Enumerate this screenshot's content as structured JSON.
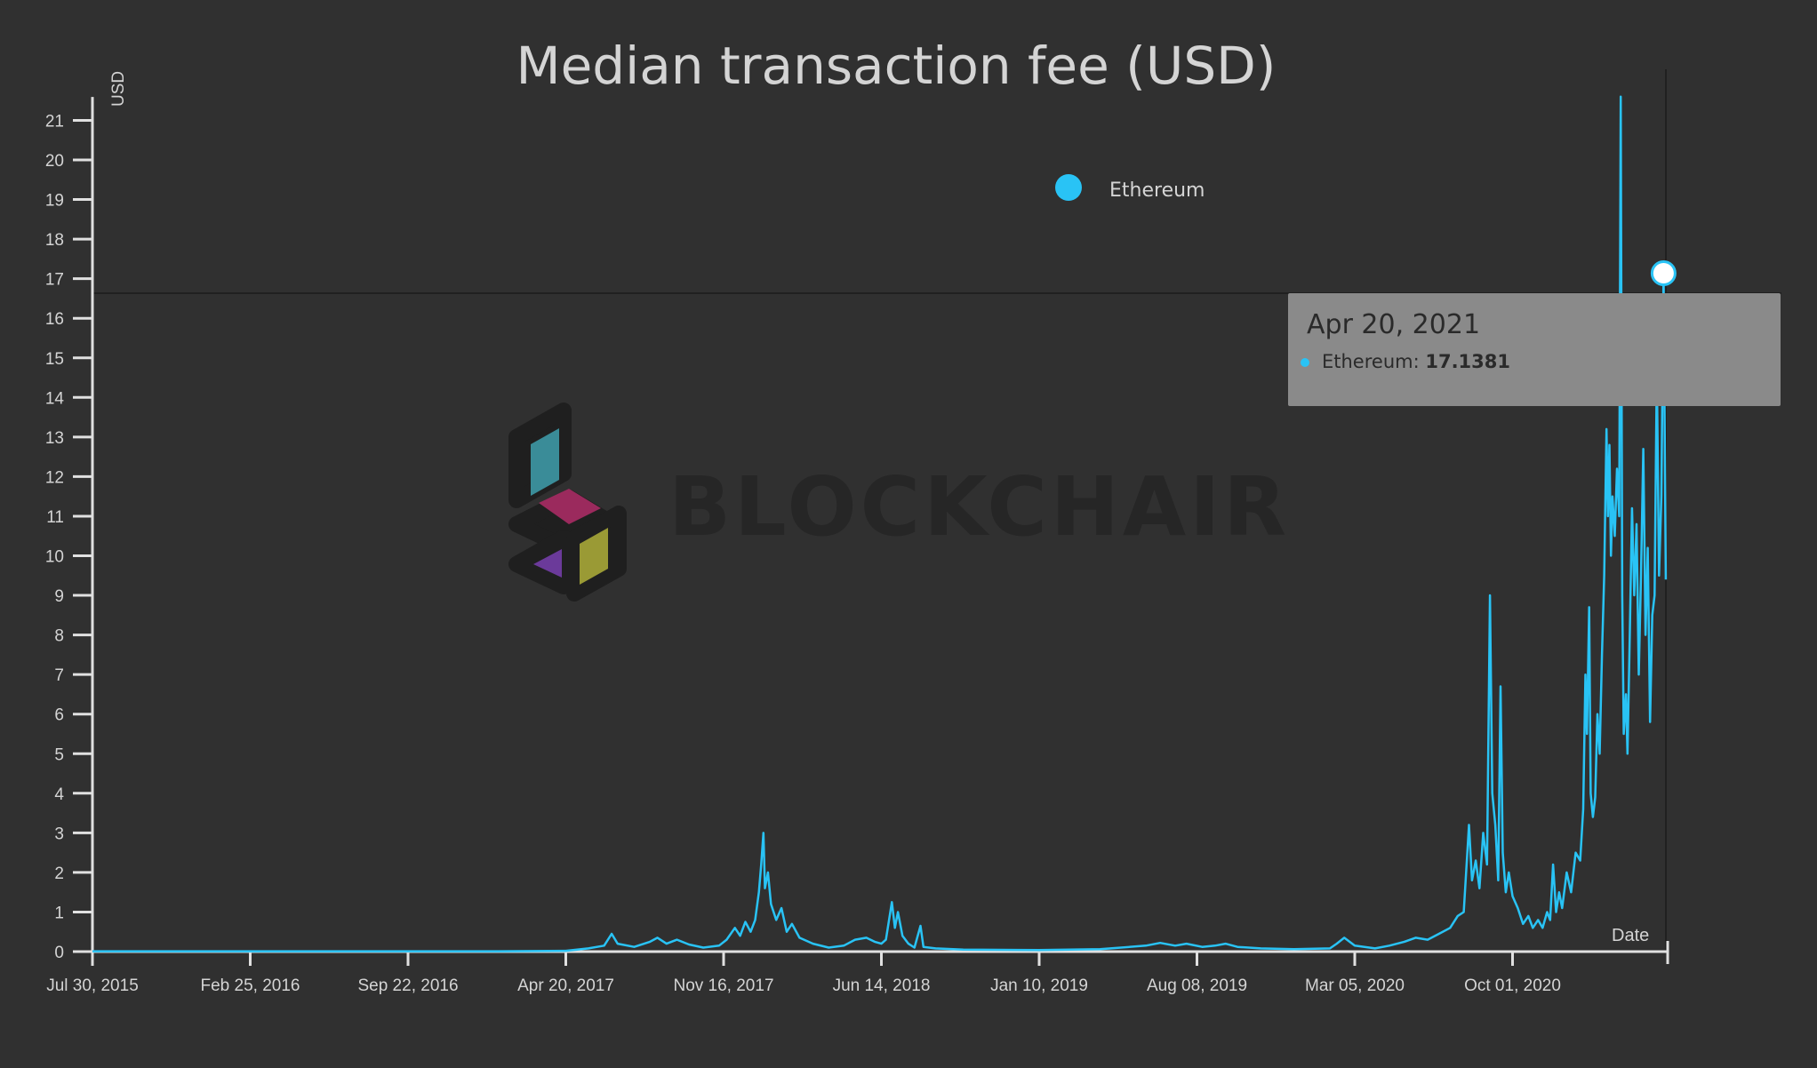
{
  "colors": {
    "background": "#303030",
    "series": "#29c3f5",
    "axis": "#e0e0e0",
    "text": "#d4d4d4",
    "tooltip_bg": "#8a8a8a",
    "watermark": "#262626"
  },
  "watermark": {
    "text": "BLOCKCHAIR"
  },
  "tooltip": {
    "date": "Apr 20, 2021",
    "series": "Ethereum",
    "separator": ":",
    "value": "17.1381"
  },
  "chart_data": {
    "type": "line",
    "title": "Median transaction fee (USD)",
    "xlabel": "Date",
    "ylabel": "USD",
    "legend": {
      "position": "top-center",
      "entries": [
        "Ethereum"
      ]
    },
    "grid": false,
    "xlim": [
      "2015-07-30",
      "2021-05-10"
    ],
    "ylim": [
      0,
      21.5
    ],
    "yticks": [
      0,
      1,
      2,
      3,
      4,
      5,
      6,
      7,
      8,
      9,
      10,
      11,
      12,
      13,
      14,
      15,
      16,
      17,
      18,
      19,
      20,
      21
    ],
    "xticks": [
      "Jul 30, 2015",
      "Feb 25, 2016",
      "Sep 22, 2016",
      "Apr 20, 2017",
      "Nov 16, 2017",
      "Jun 14, 2018",
      "Jan 10, 2019",
      "Aug 08, 2019",
      "Mar 05, 2020",
      "Oct 01, 2020"
    ],
    "highlight": {
      "x": "2021-04-20",
      "y": 17.1381
    },
    "series": [
      {
        "name": "Ethereum",
        "points": [
          [
            "2015-07-30",
            0.01
          ],
          [
            "2016-02-25",
            0.01
          ],
          [
            "2016-09-22",
            0.01
          ],
          [
            "2017-01-20",
            0.01
          ],
          [
            "2017-04-20",
            0.02
          ],
          [
            "2017-05-20",
            0.08
          ],
          [
            "2017-06-10",
            0.15
          ],
          [
            "2017-06-20",
            0.45
          ],
          [
            "2017-06-28",
            0.2
          ],
          [
            "2017-07-20",
            0.12
          ],
          [
            "2017-08-10",
            0.25
          ],
          [
            "2017-08-20",
            0.35
          ],
          [
            "2017-09-01",
            0.2
          ],
          [
            "2017-09-15",
            0.3
          ],
          [
            "2017-10-01",
            0.18
          ],
          [
            "2017-10-20",
            0.1
          ],
          [
            "2017-11-10",
            0.15
          ],
          [
            "2017-11-20",
            0.3
          ],
          [
            "2017-12-01",
            0.6
          ],
          [
            "2017-12-08",
            0.4
          ],
          [
            "2017-12-15",
            0.75
          ],
          [
            "2017-12-22",
            0.5
          ],
          [
            "2017-12-28",
            0.8
          ],
          [
            "2018-01-02",
            1.5
          ],
          [
            "2018-01-05",
            2.2
          ],
          [
            "2018-01-08",
            3.0
          ],
          [
            "2018-01-10",
            1.6
          ],
          [
            "2018-01-14",
            2.0
          ],
          [
            "2018-01-18",
            1.2
          ],
          [
            "2018-01-25",
            0.8
          ],
          [
            "2018-02-01",
            1.1
          ],
          [
            "2018-02-08",
            0.5
          ],
          [
            "2018-02-15",
            0.7
          ],
          [
            "2018-02-25",
            0.35
          ],
          [
            "2018-03-15",
            0.2
          ],
          [
            "2018-04-05",
            0.1
          ],
          [
            "2018-04-25",
            0.15
          ],
          [
            "2018-05-10",
            0.3
          ],
          [
            "2018-05-25",
            0.35
          ],
          [
            "2018-06-05",
            0.25
          ],
          [
            "2018-06-14",
            0.2
          ],
          [
            "2018-06-20",
            0.3
          ],
          [
            "2018-06-28",
            1.25
          ],
          [
            "2018-07-02",
            0.6
          ],
          [
            "2018-07-06",
            1.0
          ],
          [
            "2018-07-12",
            0.4
          ],
          [
            "2018-07-20",
            0.2
          ],
          [
            "2018-07-28",
            0.1
          ],
          [
            "2018-08-05",
            0.65
          ],
          [
            "2018-08-09",
            0.12
          ],
          [
            "2018-08-25",
            0.08
          ],
          [
            "2018-10-01",
            0.05
          ],
          [
            "2019-01-10",
            0.04
          ],
          [
            "2019-04-01",
            0.06
          ],
          [
            "2019-06-01",
            0.15
          ],
          [
            "2019-06-20",
            0.22
          ],
          [
            "2019-07-10",
            0.15
          ],
          [
            "2019-07-25",
            0.2
          ],
          [
            "2019-08-15",
            0.12
          ],
          [
            "2019-09-01",
            0.15
          ],
          [
            "2019-09-15",
            0.2
          ],
          [
            "2019-10-01",
            0.12
          ],
          [
            "2019-11-01",
            0.08
          ],
          [
            "2019-12-15",
            0.06
          ],
          [
            "2020-02-01",
            0.08
          ],
          [
            "2020-02-10",
            0.2
          ],
          [
            "2020-02-20",
            0.35
          ],
          [
            "2020-03-05",
            0.15
          ],
          [
            "2020-04-01",
            0.08
          ],
          [
            "2020-04-20",
            0.15
          ],
          [
            "2020-05-10",
            0.25
          ],
          [
            "2020-05-25",
            0.35
          ],
          [
            "2020-06-10",
            0.3
          ],
          [
            "2020-06-25",
            0.45
          ],
          [
            "2020-07-10",
            0.6
          ],
          [
            "2020-07-20",
            0.9
          ],
          [
            "2020-07-28",
            1.0
          ],
          [
            "2020-08-04",
            3.2
          ],
          [
            "2020-08-08",
            1.8
          ],
          [
            "2020-08-13",
            2.3
          ],
          [
            "2020-08-18",
            1.6
          ],
          [
            "2020-08-23",
            3.0
          ],
          [
            "2020-08-28",
            2.2
          ],
          [
            "2020-09-01",
            9.0
          ],
          [
            "2020-09-04",
            4.0
          ],
          [
            "2020-09-08",
            3.2
          ],
          [
            "2020-09-12",
            1.8
          ],
          [
            "2020-09-15",
            6.7
          ],
          [
            "2020-09-18",
            2.5
          ],
          [
            "2020-09-22",
            1.5
          ],
          [
            "2020-09-26",
            2.0
          ],
          [
            "2020-10-01",
            1.4
          ],
          [
            "2020-10-08",
            1.1
          ],
          [
            "2020-10-15",
            0.7
          ],
          [
            "2020-10-22",
            0.9
          ],
          [
            "2020-10-28",
            0.6
          ],
          [
            "2020-11-04",
            0.8
          ],
          [
            "2020-11-10",
            0.6
          ],
          [
            "2020-11-16",
            1.0
          ],
          [
            "2020-11-20",
            0.8
          ],
          [
            "2020-11-24",
            2.2
          ],
          [
            "2020-11-28",
            1.0
          ],
          [
            "2020-12-02",
            1.5
          ],
          [
            "2020-12-06",
            1.1
          ],
          [
            "2020-12-12",
            2.0
          ],
          [
            "2020-12-18",
            1.5
          ],
          [
            "2020-12-24",
            2.5
          ],
          [
            "2020-12-30",
            2.3
          ],
          [
            "2021-01-03",
            3.6
          ],
          [
            "2021-01-06",
            7.0
          ],
          [
            "2021-01-08",
            5.5
          ],
          [
            "2021-01-11",
            8.7
          ],
          [
            "2021-01-13",
            4.0
          ],
          [
            "2021-01-16",
            3.4
          ],
          [
            "2021-01-19",
            3.9
          ],
          [
            "2021-01-22",
            6.0
          ],
          [
            "2021-01-25",
            5.0
          ],
          [
            "2021-01-28",
            7.5
          ],
          [
            "2021-01-31",
            9.5
          ],
          [
            "2021-02-03",
            13.2
          ],
          [
            "2021-02-05",
            11.0
          ],
          [
            "2021-02-07",
            12.8
          ],
          [
            "2021-02-09",
            10.0
          ],
          [
            "2021-02-11",
            11.5
          ],
          [
            "2021-02-14",
            10.5
          ],
          [
            "2021-02-17",
            12.2
          ],
          [
            "2021-02-20",
            11.0
          ],
          [
            "2021-02-22",
            21.6
          ],
          [
            "2021-02-24",
            9.0
          ],
          [
            "2021-02-26",
            5.5
          ],
          [
            "2021-03-01",
            6.5
          ],
          [
            "2021-03-03",
            5.0
          ],
          [
            "2021-03-06",
            8.0
          ],
          [
            "2021-03-09",
            11.2
          ],
          [
            "2021-03-12",
            9.0
          ],
          [
            "2021-03-15",
            10.8
          ],
          [
            "2021-03-18",
            7.0
          ],
          [
            "2021-03-21",
            9.5
          ],
          [
            "2021-03-24",
            12.7
          ],
          [
            "2021-03-27",
            8.0
          ],
          [
            "2021-03-30",
            10.2
          ],
          [
            "2021-04-02",
            5.8
          ],
          [
            "2021-04-05",
            8.5
          ],
          [
            "2021-04-08",
            9.0
          ],
          [
            "2021-04-11",
            14.7
          ],
          [
            "2021-04-14",
            9.5
          ],
          [
            "2021-04-17",
            11.5
          ],
          [
            "2021-04-20",
            17.1381
          ],
          [
            "2021-04-23",
            9.4
          ]
        ]
      }
    ]
  }
}
